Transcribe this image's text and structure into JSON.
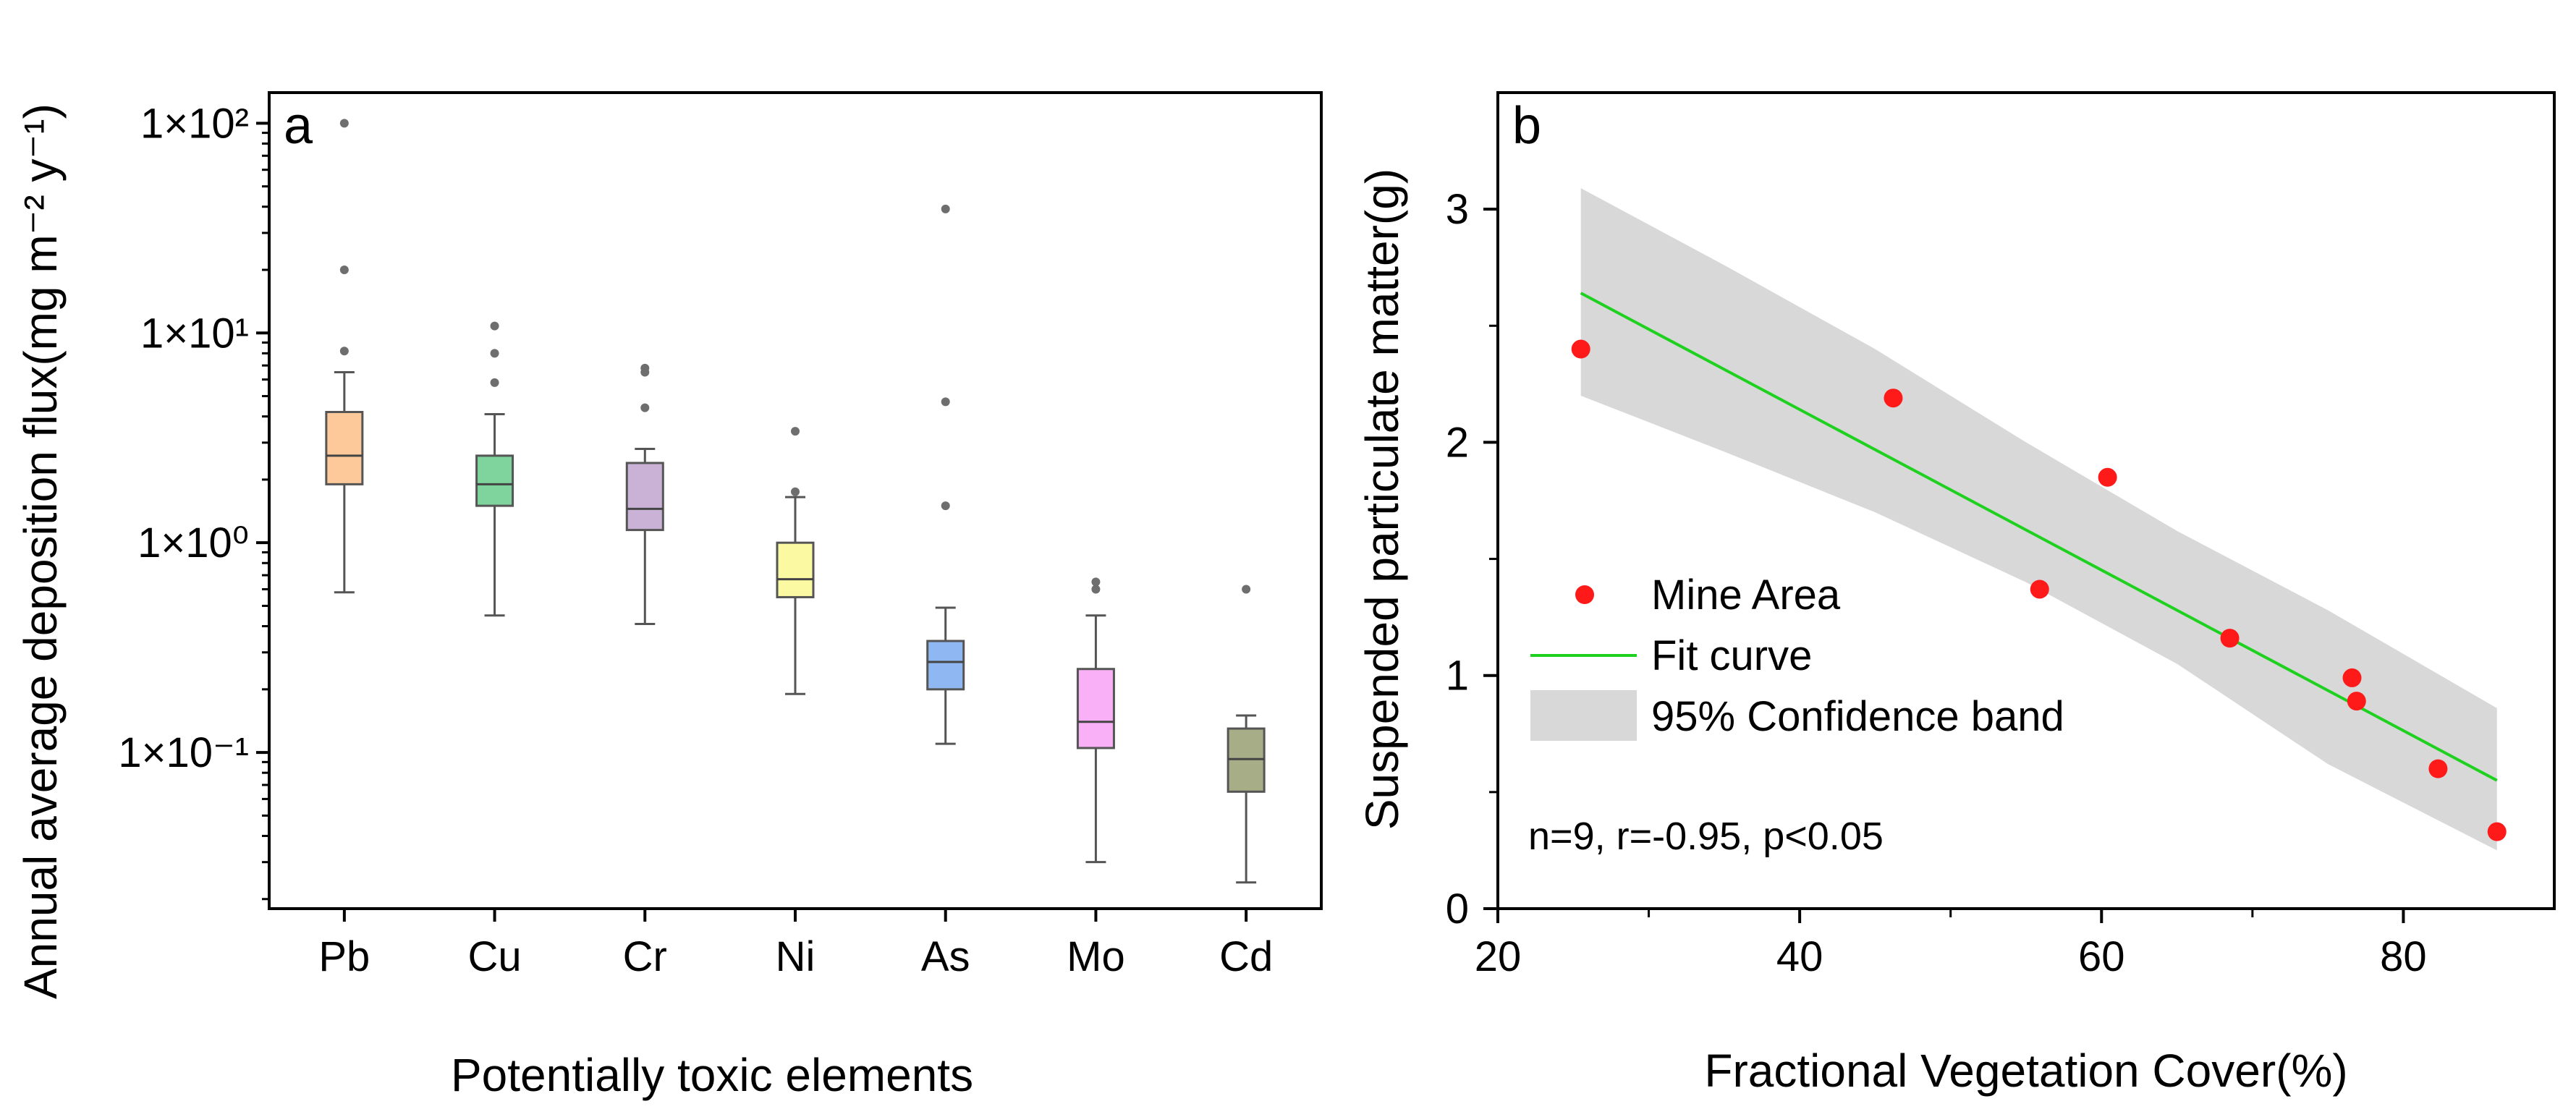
{
  "chart_data": [
    {
      "panel": "a",
      "type": "box",
      "xlabel": "Potentially toxic elements",
      "ylabel": "Annual average deposition flux(mg m⁻² y⁻¹)",
      "yscale": "log",
      "ylim": [
        0.018,
        140
      ],
      "yticks": [
        {
          "value": 0.1,
          "label": "1×10⁻¹"
        },
        {
          "value": 1,
          "label": "1×10⁰"
        },
        {
          "value": 10,
          "label": "1×10¹"
        },
        {
          "value": 100,
          "label": "1×10²"
        }
      ],
      "categories": [
        "Pb",
        "Cu",
        "Cr",
        "Ni",
        "As",
        "Mo",
        "Cd"
      ],
      "boxes": [
        {
          "name": "Pb",
          "color": "#fdc99a",
          "whisker_low": 0.58,
          "q1": 1.9,
          "median": 2.6,
          "q3": 4.2,
          "whisker_high": 6.5,
          "outliers": [
            8.2,
            20,
            100
          ]
        },
        {
          "name": "Cu",
          "color": "#7fd39c",
          "whisker_low": 0.45,
          "q1": 1.5,
          "median": 1.9,
          "q3": 2.6,
          "whisker_high": 4.1,
          "outliers": [
            5.8,
            8.0,
            10.8
          ]
        },
        {
          "name": "Cr",
          "color": "#c9b2d6",
          "whisker_low": 0.41,
          "q1": 1.15,
          "median": 1.45,
          "q3": 2.4,
          "whisker_high": 2.8,
          "outliers": [
            4.4,
            6.5,
            6.8
          ]
        },
        {
          "name": "Ni",
          "color": "#fcf9a3",
          "whisker_low": 0.19,
          "q1": 0.55,
          "median": 0.67,
          "q3": 1.0,
          "whisker_high": 1.65,
          "outliers": [
            1.75,
            3.4
          ]
        },
        {
          "name": "As",
          "color": "#8fb8f3",
          "whisker_low": 0.11,
          "q1": 0.2,
          "median": 0.27,
          "q3": 0.34,
          "whisker_high": 0.49,
          "outliers": [
            1.5,
            4.7,
            39
          ]
        },
        {
          "name": "Mo",
          "color": "#f9b0f6",
          "whisker_low": 0.03,
          "q1": 0.105,
          "median": 0.14,
          "q3": 0.25,
          "whisker_high": 0.45,
          "outliers": [
            0.6,
            0.65
          ]
        },
        {
          "name": "Cd",
          "color": "#a6ad87",
          "whisker_low": 0.024,
          "q1": 0.065,
          "median": 0.093,
          "q3": 0.13,
          "whisker_high": 0.15,
          "outliers": [
            0.6
          ]
        }
      ]
    },
    {
      "panel": "b",
      "type": "scatter",
      "xlabel": "Fractional Vegetation Cover(%)",
      "ylabel": "Suspended particulate matter(g)",
      "xlim": [
        20,
        90
      ],
      "ylim": [
        0,
        3.5
      ],
      "xticks": [
        20,
        40,
        60,
        80
      ],
      "yticks": [
        0,
        1,
        2,
        3
      ],
      "series": [
        {
          "name": "Mine Area",
          "color": "#ff1a1a",
          "points": [
            [
              25.5,
              2.4
            ],
            [
              46.2,
              2.19
            ],
            [
              55.9,
              1.37
            ],
            [
              60.4,
              1.85
            ],
            [
              68.5,
              1.16
            ],
            [
              76.6,
              0.99
            ],
            [
              76.9,
              0.89
            ],
            [
              82.3,
              0.6
            ],
            [
              86.2,
              0.33
            ]
          ]
        }
      ],
      "fit": {
        "name": "Fit curve",
        "color": "#1fd11f",
        "x": [
          25.5,
          86.2
        ],
        "y": [
          2.64,
          0.55
        ]
      },
      "band": {
        "name": "95% Confidence band",
        "color": "#d8d8d8",
        "x": [
          25.5,
          35,
          45,
          55,
          65,
          75,
          86.2
        ],
        "upper": [
          3.09,
          2.76,
          2.4,
          2.0,
          1.62,
          1.28,
          0.86
        ],
        "lower": [
          2.2,
          1.96,
          1.7,
          1.4,
          1.05,
          0.62,
          0.25
        ]
      },
      "legend": [
        "Mine Area",
        "Fit curve",
        "95% Confidence band"
      ],
      "annotation": "n=9, r=-0.95, p<0.05"
    }
  ]
}
